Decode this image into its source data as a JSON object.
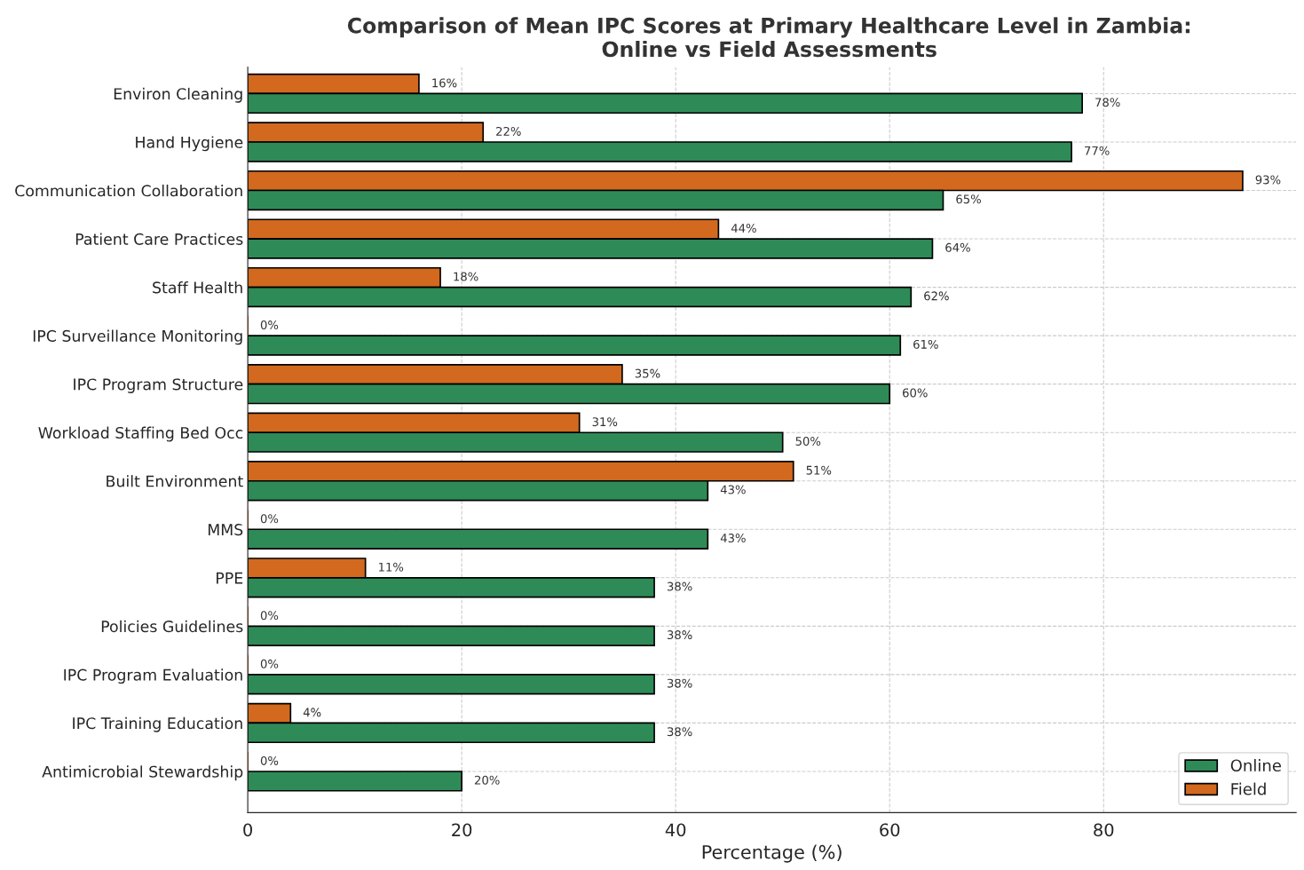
{
  "chart_data": {
    "type": "bar",
    "orientation": "horizontal",
    "title": "Comparison of Mean IPC Scores at Primary Healthcare Level in Zambia:\nOnline vs Field Assessments",
    "xlabel": "Percentage (%)",
    "categories": [
      "Environ Cleaning",
      "Hand Hygiene",
      "Communication Collaboration",
      "Patient Care Practices",
      "Staff Health",
      "IPC Surveillance Monitoring",
      "IPC Program Structure",
      "Workload Staffing Bed Occ",
      "Built Environment",
      "MMS",
      "PPE",
      "Policies Guidelines",
      "IPC Program Evaluation",
      "IPC Training Education",
      "Antimicrobial Stewardship"
    ],
    "series": [
      {
        "name": "Field",
        "color": "#d2691e",
        "values": [
          16,
          22,
          93,
          44,
          18,
          0,
          35,
          31,
          51,
          0,
          11,
          0,
          0,
          4,
          0
        ],
        "value_labels": [
          "16%",
          "22%",
          "93%",
          "44%",
          "18%",
          "0%",
          "35%",
          "31%",
          "51%",
          "0%",
          "11%",
          "0%",
          "0%",
          "4%",
          "0%"
        ]
      },
      {
        "name": "Online",
        "color": "#2e8b57",
        "values": [
          78,
          77,
          65,
          64,
          62,
          61,
          60,
          50,
          43,
          43,
          38,
          38,
          38,
          38,
          20
        ],
        "value_labels": [
          "78%",
          "77%",
          "65%",
          "64%",
          "62%",
          "61%",
          "60%",
          "50%",
          "43%",
          "43%",
          "38%",
          "38%",
          "38%",
          "38%",
          "20%"
        ]
      }
    ],
    "xlim": [
      0,
      98
    ],
    "xticks": [
      0,
      20,
      40,
      60,
      80
    ],
    "grid": true,
    "legend": "bottom right"
  }
}
